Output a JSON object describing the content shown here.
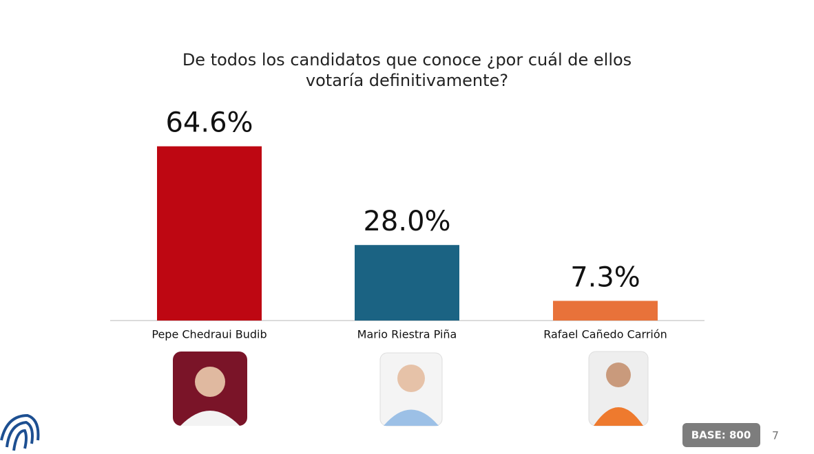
{
  "chart_data": {
    "type": "bar",
    "title": "De todos los candidatos que conoce ¿por cuál de ellos votaría definitivamente?",
    "categories": [
      "Pepe Chedraui Budib",
      "Mario Riestra Piña",
      "Rafael Cañedo Carrión"
    ],
    "values": [
      64.6,
      28.0,
      7.3
    ],
    "value_labels": [
      "64.6%",
      "28.0%",
      "7.3%"
    ],
    "colors": [
      "#be0712",
      "#1b6383",
      "#e8723a"
    ],
    "ylim": [
      0,
      70
    ]
  },
  "footer": {
    "base": "BASE: 800",
    "page": 7
  }
}
